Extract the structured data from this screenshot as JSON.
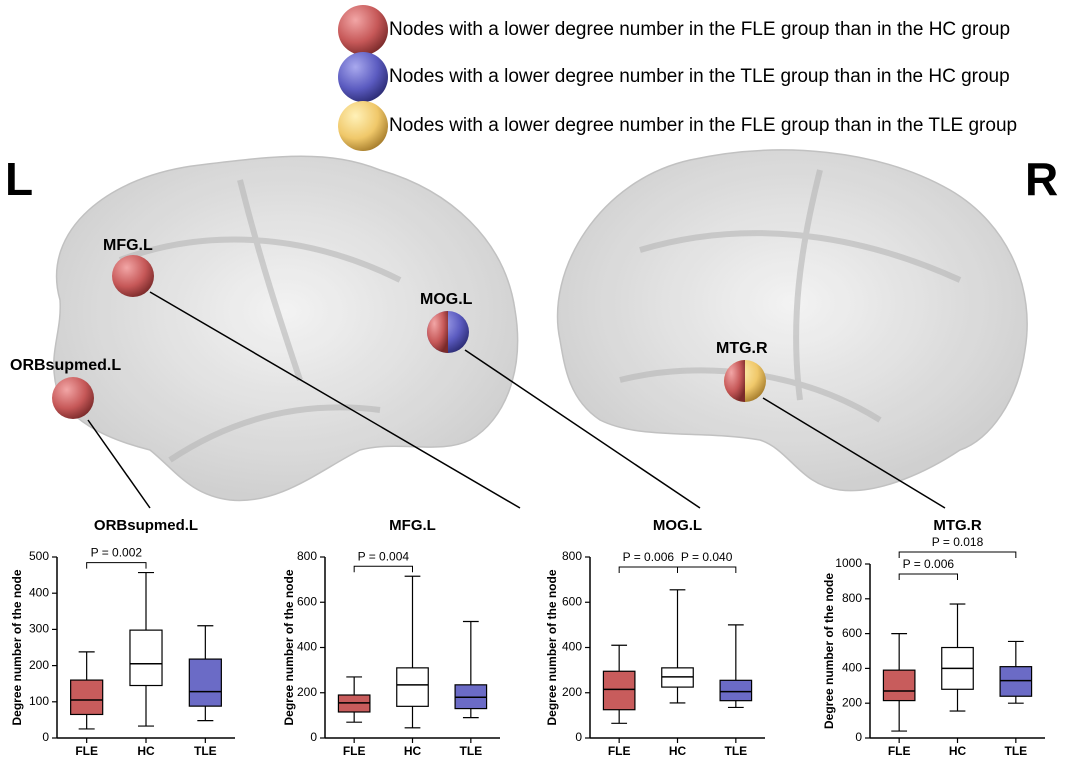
{
  "legend": [
    "Nodes with a lower degree number in the FLE group than in the HC group",
    "Nodes with a lower degree number in the TLE group than in the HC group",
    "Nodes with a lower degree number in the FLE group than in the TLE group"
  ],
  "brain": {
    "left_label": "L",
    "right_label": "R",
    "nodes": [
      "MFG.L",
      "ORBsupmed.L",
      "MOG.L",
      "MTG.R"
    ]
  },
  "chart_data": [
    {
      "type": "box",
      "title": "ORBsupmed.L",
      "ylabel": "Degree number of the node",
      "categories": [
        "FLE",
        "HC",
        "TLE"
      ],
      "colors": [
        "#c85c5c",
        "#ffffff",
        "#6b6bc6"
      ],
      "boxes": [
        {
          "min": 25,
          "q1": 65,
          "median": 105,
          "q3": 160,
          "max": 238
        },
        {
          "min": 33,
          "q1": 145,
          "median": 205,
          "q3": 298,
          "max": 457
        },
        {
          "min": 48,
          "q1": 88,
          "median": 128,
          "q3": 218,
          "max": 310
        }
      ],
      "ylim": [
        0,
        500
      ],
      "yticks": [
        0,
        100,
        200,
        300,
        400,
        500
      ],
      "annotations": [
        {
          "text": "P = 0.002",
          "groups": [
            "FLE",
            "HC"
          ]
        }
      ]
    },
    {
      "type": "box",
      "title": "MFG.L",
      "ylabel": "Degree number of the node",
      "categories": [
        "FLE",
        "HC",
        "TLE"
      ],
      "colors": [
        "#c85c5c",
        "#ffffff",
        "#6b6bc6"
      ],
      "boxes": [
        {
          "min": 70,
          "q1": 115,
          "median": 155,
          "q3": 190,
          "max": 270
        },
        {
          "min": 45,
          "q1": 140,
          "median": 235,
          "q3": 310,
          "max": 715
        },
        {
          "min": 90,
          "q1": 130,
          "median": 180,
          "q3": 235,
          "max": 515
        }
      ],
      "ylim": [
        0,
        800
      ],
      "yticks": [
        0,
        200,
        400,
        600,
        800
      ],
      "annotations": [
        {
          "text": "P = 0.004",
          "groups": [
            "FLE",
            "HC"
          ]
        }
      ]
    },
    {
      "type": "box",
      "title": "MOG.L",
      "ylabel": "Degree number of the node",
      "categories": [
        "FLE",
        "HC",
        "TLE"
      ],
      "colors": [
        "#c85c5c",
        "#ffffff",
        "#6b6bc6"
      ],
      "boxes": [
        {
          "min": 65,
          "q1": 125,
          "median": 215,
          "q3": 295,
          "max": 410
        },
        {
          "min": 155,
          "q1": 225,
          "median": 270,
          "q3": 310,
          "max": 655
        },
        {
          "min": 135,
          "q1": 165,
          "median": 205,
          "q3": 255,
          "max": 500
        }
      ],
      "ylim": [
        0,
        800
      ],
      "yticks": [
        0,
        200,
        400,
        600,
        800
      ],
      "annotations": [
        {
          "text": "P = 0.006",
          "groups": [
            "FLE",
            "HC"
          ]
        },
        {
          "text": "P = 0.040",
          "groups": [
            "HC",
            "TLE"
          ]
        }
      ]
    },
    {
      "type": "box",
      "title": "MTG.R",
      "ylabel": "Degree number of the node",
      "categories": [
        "FLE",
        "HC",
        "TLE"
      ],
      "colors": [
        "#c85c5c",
        "#ffffff",
        "#6b6bc6"
      ],
      "boxes": [
        {
          "min": 40,
          "q1": 215,
          "median": 270,
          "q3": 390,
          "max": 600
        },
        {
          "min": 155,
          "q1": 280,
          "median": 400,
          "q3": 520,
          "max": 770
        },
        {
          "min": 200,
          "q1": 240,
          "median": 330,
          "q3": 410,
          "max": 555
        }
      ],
      "ylim": [
        0,
        1000
      ],
      "yticks": [
        0,
        200,
        400,
        600,
        800,
        1000
      ],
      "annotations": [
        {
          "text": "P = 0.006",
          "groups": [
            "FLE",
            "HC"
          ]
        },
        {
          "text": "P = 0.018",
          "groups": [
            "FLE",
            "TLE"
          ]
        }
      ]
    }
  ]
}
